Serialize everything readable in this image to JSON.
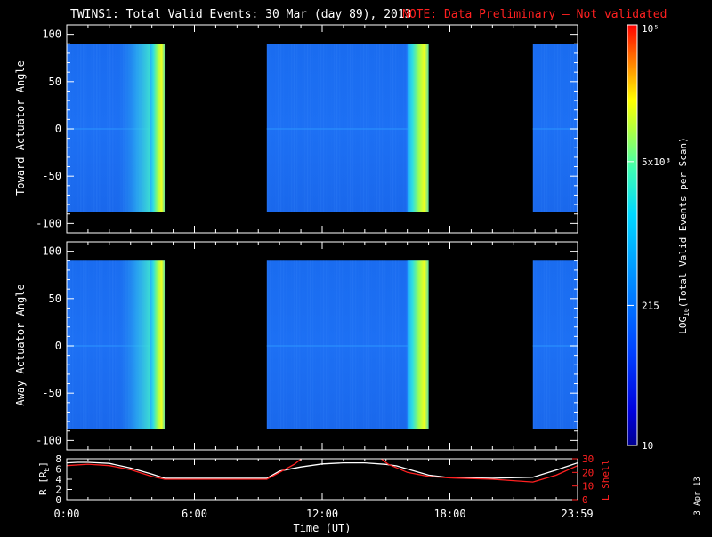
{
  "title": {
    "main": "TWINS1: Total Valid Events: 30 Mar (day  89), 2013",
    "note": "NOTE: Data Preliminary — Not validated"
  },
  "colors": {
    "background": "#000000",
    "axes": "#ffffff",
    "note": "#ff2020",
    "l_shell": "#ff2020",
    "radius": "#ffffff"
  },
  "colorbar": {
    "label_main": "LOG",
    "label_sub": "10",
    "label_rest": "(Total Valid Events per Scan)",
    "ticks": [
      {
        "value": "10",
        "text": "10"
      },
      {
        "value": "215",
        "text": "215"
      },
      {
        "value": "5000",
        "text": "5x10³"
      },
      {
        "value": "100000",
        "text": "10⁵"
      }
    ]
  },
  "timestamp": "3 Apr 13",
  "chart_data": [
    {
      "type": "heatmap",
      "name": "toward",
      "ylabel": "Toward Actuator Angle",
      "ylim": [
        -110,
        110
      ],
      "yticks": [
        -100,
        -50,
        0,
        50,
        100
      ],
      "xlim": [
        0,
        24
      ],
      "data_ylim": [
        -88,
        90
      ],
      "segments": [
        [
          0.0,
          4.6
        ],
        [
          9.4,
          17.0
        ],
        [
          21.9,
          24.0
        ]
      ],
      "yellow_bands": [
        [
          3.9,
          4.6
        ],
        [
          16.0,
          17.0
        ]
      ]
    },
    {
      "type": "heatmap",
      "name": "away",
      "ylabel": "Away Actuator Angle",
      "ylim": [
        -110,
        110
      ],
      "yticks": [
        -100,
        -50,
        0,
        50,
        100
      ],
      "xlim": [
        0,
        24
      ],
      "data_ylim": [
        -88,
        90
      ],
      "segments": [
        [
          0.0,
          4.6
        ],
        [
          9.4,
          17.0
        ],
        [
          21.9,
          24.0
        ]
      ],
      "yellow_bands": [
        [
          3.9,
          4.6
        ],
        [
          16.0,
          17.0
        ]
      ]
    },
    {
      "type": "line",
      "name": "orbit",
      "xlabel": "Time (UT)",
      "xticks": [
        0,
        6,
        12,
        18,
        23.983
      ],
      "xticklabels": [
        "0:00",
        "6:00",
        "12:00",
        "18:00",
        "23:59"
      ],
      "xlim": [
        0,
        24
      ],
      "left_axis": {
        "label": "R [R",
        "sub": "E",
        "label_end": "]",
        "ylim": [
          0,
          8
        ],
        "yticks": [
          0,
          2,
          4,
          6,
          8
        ]
      },
      "right_axis": {
        "label": "L Shell",
        "ylim": [
          0,
          30
        ],
        "yticks": [
          0,
          10,
          20,
          30
        ]
      },
      "series": [
        {
          "name": "R",
          "axis": "left",
          "x": [
            0,
            0.5,
            1,
            2,
            3,
            4,
            4.6,
            6,
            8,
            9.4,
            10,
            11,
            12,
            13,
            14,
            15,
            15.5,
            16,
            17,
            18,
            20,
            21.9,
            23,
            24
          ],
          "y": [
            7.2,
            7.3,
            7.3,
            7.1,
            6.2,
            5.0,
            4.2,
            4.2,
            4.2,
            4.2,
            5.6,
            6.4,
            7.0,
            7.2,
            7.2,
            6.9,
            6.6,
            6.0,
            4.8,
            4.3,
            4.2,
            4.4,
            5.8,
            7.2
          ]
        },
        {
          "name": "L Shell",
          "axis": "right",
          "x": [
            0,
            1,
            2,
            3,
            4,
            4.6,
            6,
            8,
            9.4,
            10,
            10.7,
            11.1,
            14.7,
            15.1,
            16,
            17,
            18,
            20,
            21.9,
            23,
            24
          ],
          "y": [
            25,
            26,
            25,
            22,
            17,
            15,
            15,
            15,
            15,
            20,
            26,
            31,
            31,
            26,
            20,
            17,
            16,
            15,
            13,
            18,
            25
          ]
        }
      ]
    }
  ]
}
